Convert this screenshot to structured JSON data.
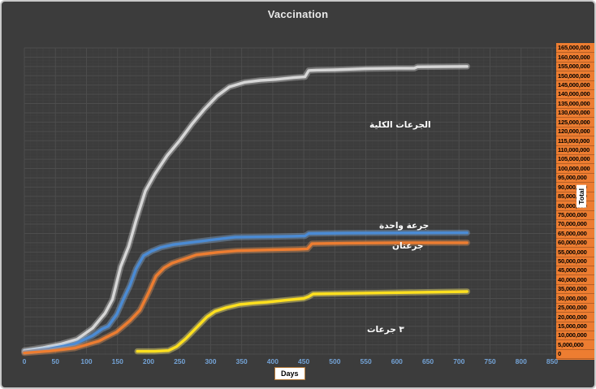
{
  "colors": {
    "canvas_bg": "#3c3c3c",
    "frame_border": "#c9c9c9",
    "grid_major": "#4d4d4d",
    "grid_minor": "#434343",
    "x_tick_color": "#74a3d6",
    "y_axis_bg": "#ED7D31",
    "title_color": "#e9e9e9"
  },
  "chart_data": {
    "type": "line",
    "title": "Vaccination",
    "xlabel": "Days",
    "ylabel": "Total",
    "xlim": [
      0,
      850
    ],
    "ylim": [
      0,
      165000000
    ],
    "x_tick_step": 50,
    "y_tick_step": 5000000,
    "grid": "on",
    "legend_position": "inline-labels",
    "x_tick_labels": [
      "0",
      "50",
      "100",
      "150",
      "200",
      "250",
      "300",
      "350",
      "400",
      "450",
      "500",
      "550",
      "600",
      "650",
      "700",
      "750",
      "800",
      "850"
    ],
    "y_tick_labels": [
      "165,000,000",
      "160,000,000",
      "155,000,000",
      "150,000,000",
      "145,000,000",
      "140,000,000",
      "135,000,000",
      "130,000,000",
      "125,000,000",
      "120,000,000",
      "115,000,000",
      "110,000,000",
      "105,000,000",
      "100,000,000",
      "95,000,000",
      "90,000,000",
      "85,000,000",
      "80,000,000",
      "75,000,000",
      "70,000,000",
      "65,000,000",
      "60,000,000",
      "55,000,000",
      "50,000,000",
      "45,000,000",
      "40,000,000",
      "35,000,000",
      "30,000,000",
      "25,000,000",
      "20,000,000",
      "15,000,000",
      "10,000,000",
      "5,000,000",
      "0"
    ],
    "series": [
      {
        "name": "total-doses",
        "label": "الجرعات الكلية",
        "color": "#d6d6d6",
        "glow": "rgba(255,255,255,0.30)",
        "x": [
          0,
          30,
          60,
          85,
          110,
          130,
          142,
          155,
          168,
          180,
          195,
          210,
          230,
          250,
          270,
          290,
          310,
          330,
          355,
          380,
          405,
          434,
          452,
          458,
          470,
          500,
          550,
          600,
          628,
          633,
          670,
          713
        ],
        "y": [
          2000000,
          3500000,
          5500000,
          8000000,
          14000000,
          22000000,
          29500000,
          47000000,
          58000000,
          72000000,
          88000000,
          97000000,
          107000000,
          115000000,
          124000000,
          132000000,
          139000000,
          144000000,
          146500000,
          147500000,
          148000000,
          149000000,
          149400000,
          152800000,
          153000000,
          153200000,
          153800000,
          154000000,
          154000000,
          154800000,
          154900000,
          155000000
        ]
      },
      {
        "name": "one-dose",
        "label": "جرعة واحدة",
        "color": "#4b8bd4",
        "glow": "rgba(140,190,240,0.35)",
        "x": [
          0,
          40,
          81,
          110,
          125,
          135,
          149,
          160,
          170,
          180,
          192,
          205,
          220,
          240,
          264,
          300,
          339,
          400,
          434,
          452,
          458,
          520,
          600,
          713
        ],
        "y": [
          1200000,
          2800000,
          5400000,
          10000000,
          13500000,
          15000000,
          21500000,
          30000000,
          37000000,
          46000000,
          53000000,
          55500000,
          57500000,
          59000000,
          60000000,
          61500000,
          63000000,
          63300000,
          63500000,
          63700000,
          65000000,
          65200000,
          65300000,
          65400000
        ]
      },
      {
        "name": "two-doses",
        "label": "جرعتان",
        "color": "#ED7D31",
        "glow": "rgba(255,160,90,0.35)",
        "x": [
          0,
          40,
          81,
          120,
          149,
          170,
          186,
          200,
          212,
          225,
          238,
          260,
          277,
          310,
          343,
          400,
          440,
          456,
          463,
          520,
          600,
          713
        ],
        "y": [
          600000,
          1600000,
          3200000,
          7000000,
          12000000,
          18000000,
          23600000,
          33000000,
          42000000,
          46500000,
          49000000,
          51500000,
          53500000,
          54800000,
          55700000,
          56200000,
          56500000,
          56700000,
          59500000,
          59800000,
          60000000,
          60000000
        ]
      },
      {
        "name": "three-doses",
        "label": "٣ جرعات",
        "color": "#ffe01e",
        "glow": "rgba(255,240,110,0.40)",
        "x": [
          182,
          210,
          232,
          245,
          260,
          275,
          294,
          307,
          325,
          346,
          370,
          391,
          420,
          450,
          458,
          465,
          520,
          580,
          640,
          713
        ],
        "y": [
          1500000,
          1500000,
          1900000,
          4000000,
          8300000,
          13500000,
          20000000,
          23000000,
          25000000,
          26700000,
          27500000,
          28000000,
          29000000,
          30000000,
          31000000,
          32400000,
          32700000,
          33000000,
          33300000,
          33700000
        ]
      }
    ]
  }
}
